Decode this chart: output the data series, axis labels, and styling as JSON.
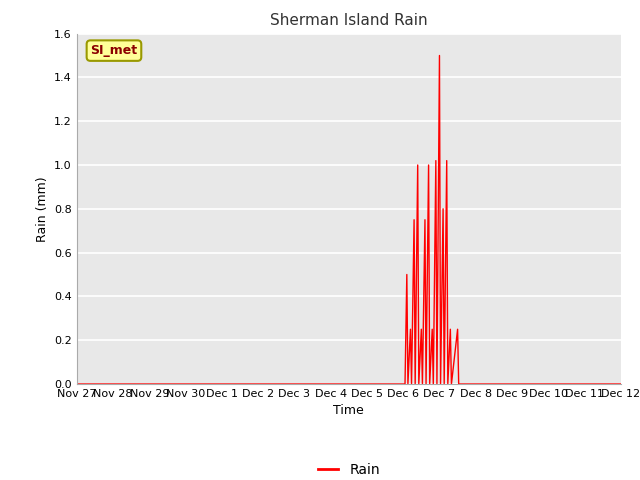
{
  "title": "Sherman Island Rain",
  "xlabel": "Time",
  "ylabel": "Rain (mm)",
  "line_color": "#ff0000",
  "line_width": 1.0,
  "fig_bg_color": "#ffffff",
  "plot_bg_color": "#e8e8e8",
  "ylim": [
    0.0,
    1.6
  ],
  "yticks": [
    0.0,
    0.2,
    0.4,
    0.6,
    0.8,
    1.0,
    1.2,
    1.4,
    1.6
  ],
  "legend_label": "Rain",
  "sensor_label": "SI_met",
  "data_points": [
    [
      0.0,
      0.0
    ],
    [
      1.0,
      0.0
    ],
    [
      2.0,
      0.0
    ],
    [
      3.0,
      0.0
    ],
    [
      4.0,
      0.0
    ],
    [
      5.0,
      0.0
    ],
    [
      6.0,
      0.0
    ],
    [
      7.0,
      0.0
    ],
    [
      8.0,
      0.0
    ],
    [
      9.0,
      0.0
    ],
    [
      9.05,
      0.0
    ],
    [
      9.1,
      0.5
    ],
    [
      9.13,
      0.0
    ],
    [
      9.2,
      0.25
    ],
    [
      9.23,
      0.0
    ],
    [
      9.3,
      0.75
    ],
    [
      9.33,
      0.0
    ],
    [
      9.4,
      1.0
    ],
    [
      9.43,
      0.0
    ],
    [
      9.5,
      0.25
    ],
    [
      9.53,
      0.0
    ],
    [
      9.6,
      0.75
    ],
    [
      9.63,
      0.0
    ],
    [
      9.7,
      1.0
    ],
    [
      9.73,
      0.0
    ],
    [
      9.8,
      0.25
    ],
    [
      9.83,
      0.0
    ],
    [
      9.9,
      1.02
    ],
    [
      9.93,
      0.0
    ],
    [
      10.0,
      1.5
    ],
    [
      10.03,
      0.0
    ],
    [
      10.1,
      0.8
    ],
    [
      10.13,
      0.0
    ],
    [
      10.2,
      1.02
    ],
    [
      10.23,
      0.0
    ],
    [
      10.3,
      0.25
    ],
    [
      10.33,
      0.0
    ],
    [
      10.5,
      0.25
    ],
    [
      10.53,
      0.0
    ],
    [
      11.0,
      0.0
    ],
    [
      12.0,
      0.0
    ],
    [
      13.0,
      0.0
    ],
    [
      14.0,
      0.0
    ],
    [
      15.0,
      0.0
    ]
  ],
  "xtick_positions": [
    0,
    1,
    2,
    3,
    4,
    5,
    6,
    7,
    8,
    9,
    10,
    11,
    12,
    13,
    14,
    15
  ],
  "xtick_labels": [
    "Nov 27",
    "Nov 28",
    "Nov 29",
    "Nov 30",
    "Dec 1",
    "Dec 2",
    "Dec 3",
    "Dec 4",
    "Dec 5",
    "Dec 6",
    "Dec 7",
    "Dec 8",
    "Dec 9",
    "Dec 10",
    "Dec 11",
    "Dec 12"
  ],
  "grid_color": "#ffffff",
  "title_fontsize": 11,
  "label_fontsize": 9,
  "tick_fontsize": 8
}
